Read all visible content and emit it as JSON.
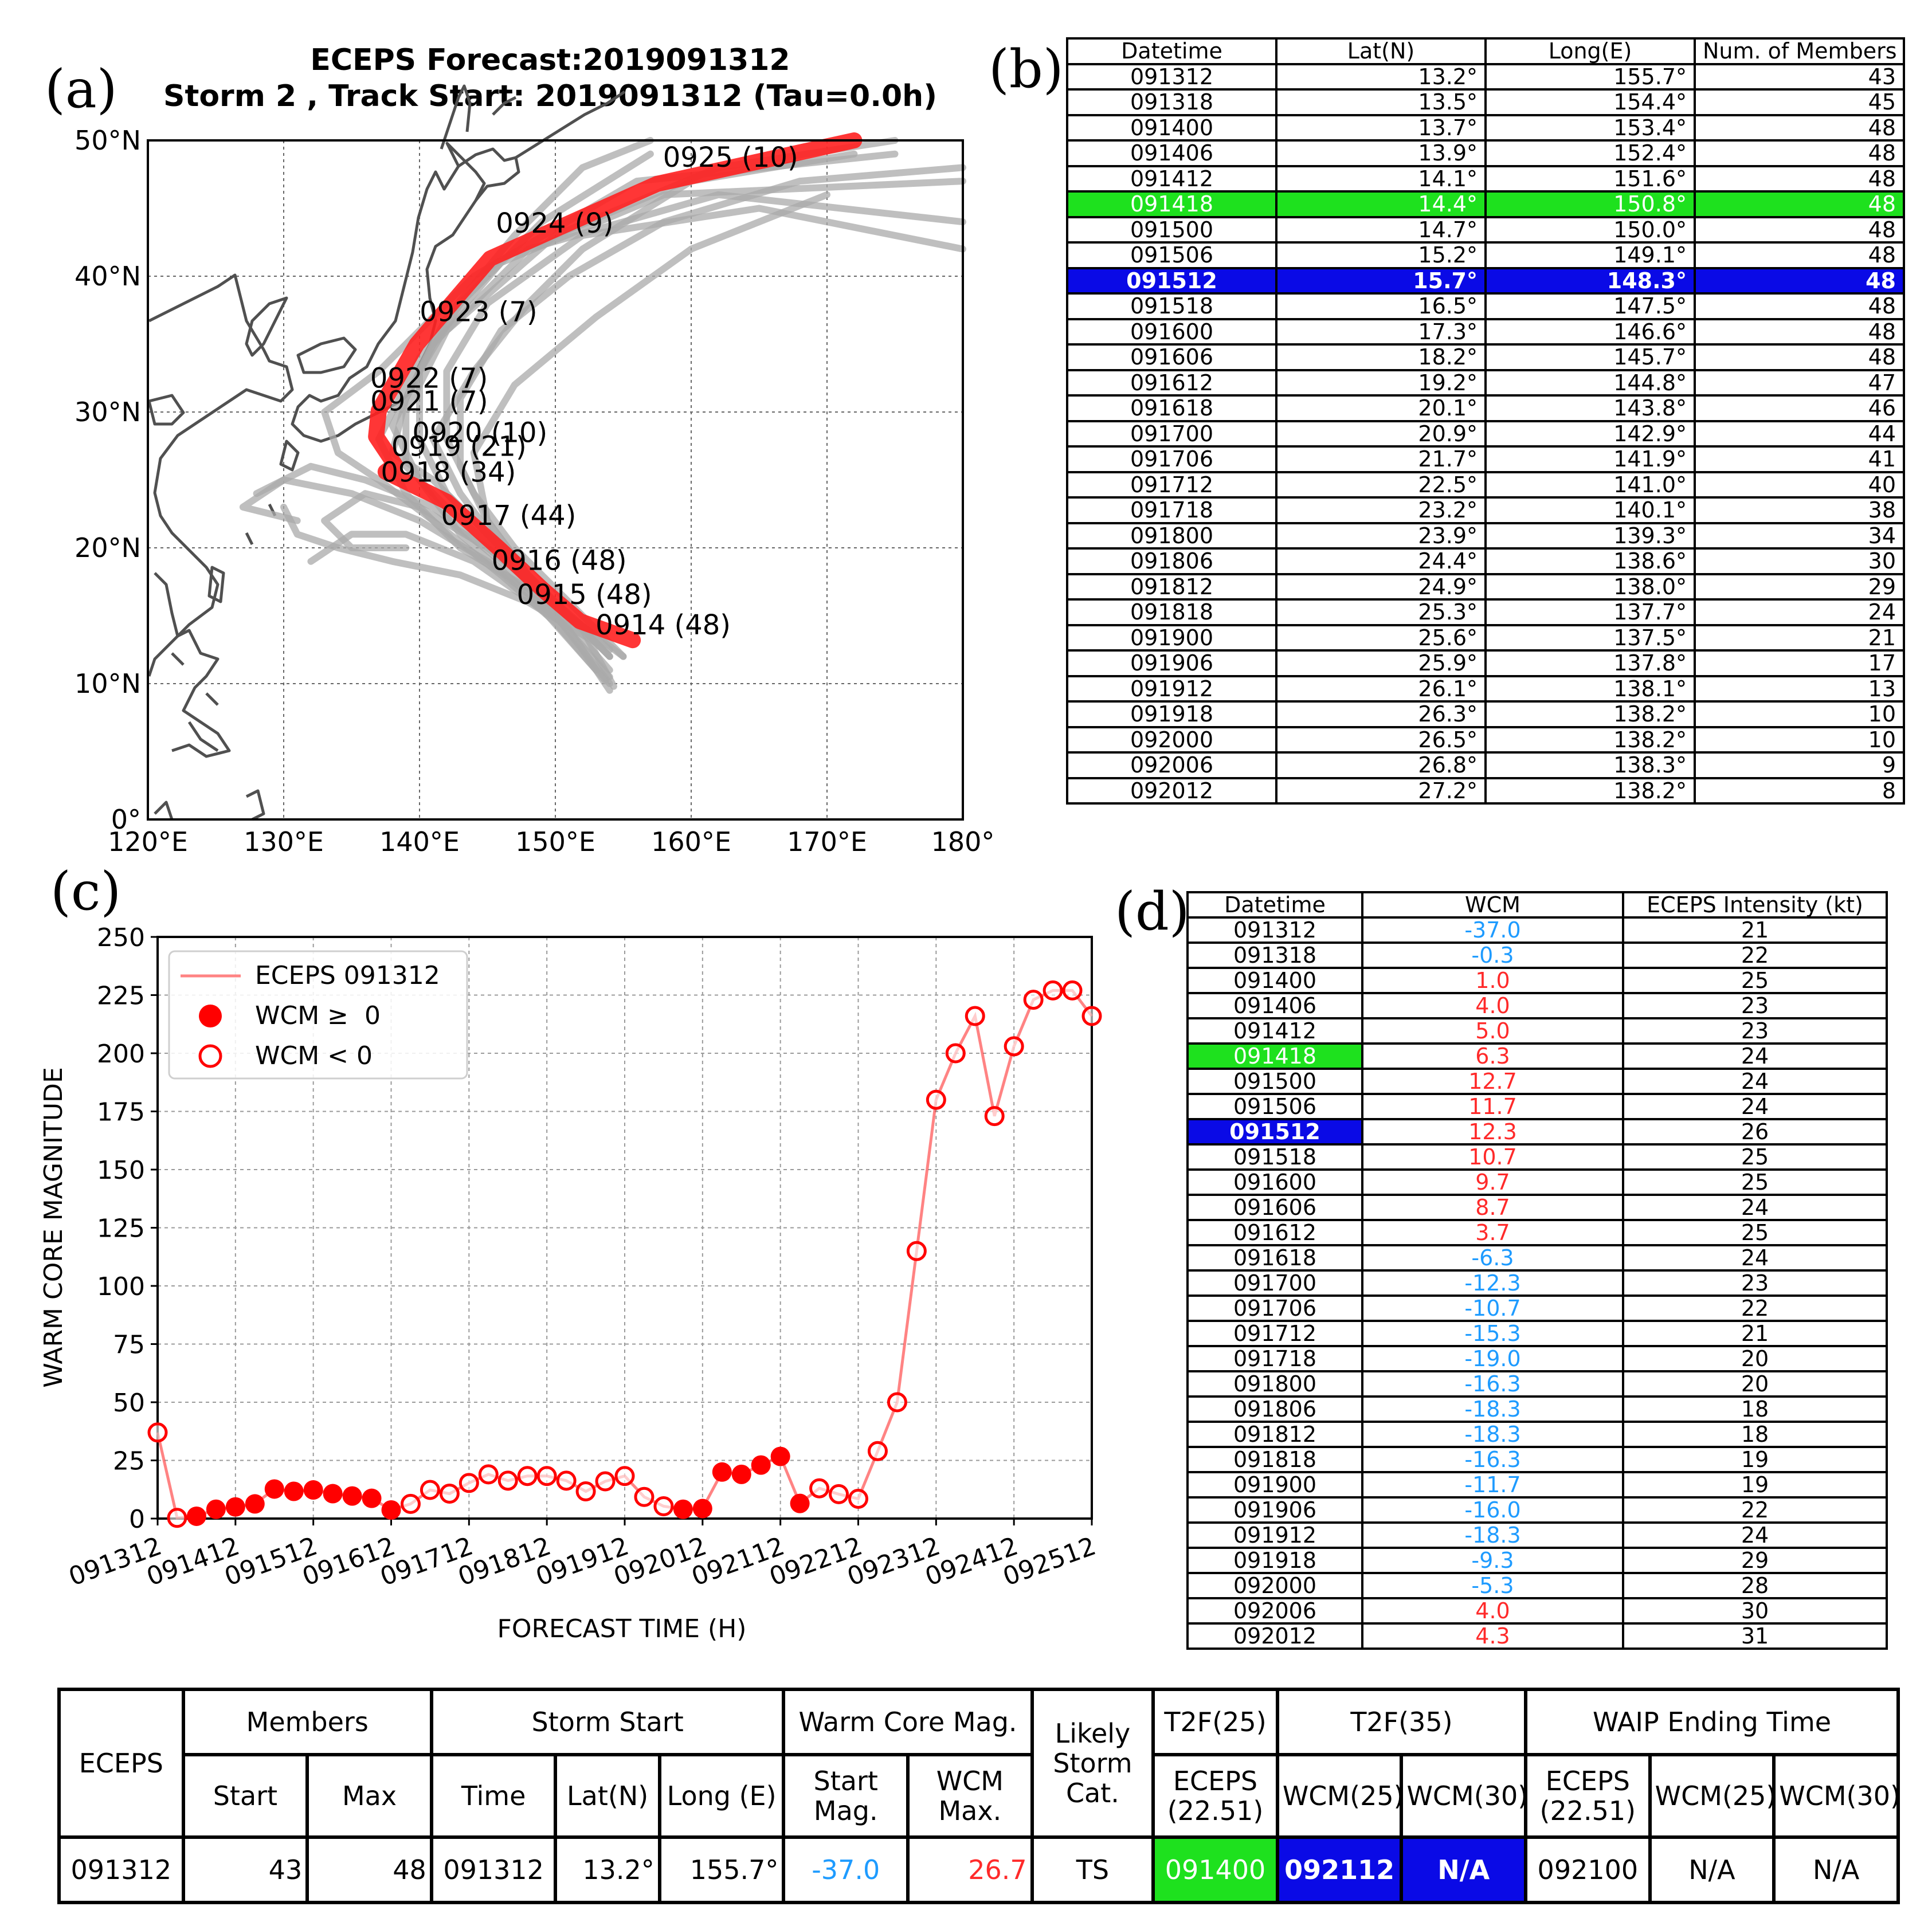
{
  "panels": {
    "a": "(a)",
    "b": "(b)",
    "c": "(c)",
    "d": "(d)"
  },
  "map": {
    "title_line1": "ECEPS Forecast:2019091312",
    "title_line2": "Storm 2 , Track Start: 2019091312 (Tau=0.0h)",
    "lon_ticks": [
      "120°E",
      "130°E",
      "140°E",
      "150°E",
      "160°E",
      "170°E",
      "180°"
    ],
    "lat_ticks": [
      "50°N",
      "40°N",
      "30°N",
      "20°N",
      "10°N",
      "0°"
    ],
    "mean_track": [
      {
        "lon": 155.7,
        "lat": 13.2,
        "label": "0914 (48)"
      },
      {
        "lon": 151.8,
        "lat": 14.6,
        "label": "0915 (48)"
      },
      {
        "lon": 149.1,
        "lat": 16.9,
        "label": "0916 (48)"
      },
      {
        "lon": 145.8,
        "lat": 20.0,
        "label": "0917 (44)"
      },
      {
        "lon": 142.0,
        "lat": 23.4,
        "label": "0918 (34)"
      },
      {
        "lon": 137.5,
        "lat": 25.6,
        "label": "0919 (21)"
      },
      {
        "lon": 138.2,
        "lat": 26.1,
        "label": "0920 (10)"
      },
      {
        "lon": 136.8,
        "lat": 28.2,
        "label": "0921 (7)"
      },
      {
        "lon": 137.0,
        "lat": 30.1,
        "label": "0922 (7)"
      },
      {
        "lon": 139.8,
        "lat": 35.0,
        "label": "0923 (7)"
      },
      {
        "lon": 145.2,
        "lat": 41.3,
        "label": "0924 (9)"
      },
      {
        "lon": 157.5,
        "lat": 46.8,
        "label": "0925 (10)"
      },
      {
        "lon": 172.0,
        "lat": 50.0,
        "label": ""
      }
    ]
  },
  "table_b": {
    "headers": [
      "Datetime",
      "Lat(N)",
      "Long(E)",
      "Num. of Members"
    ],
    "rows": [
      [
        "091312",
        "13.2°",
        "155.7°",
        "43"
      ],
      [
        "091318",
        "13.5°",
        "154.4°",
        "45"
      ],
      [
        "091400",
        "13.7°",
        "153.4°",
        "48"
      ],
      [
        "091406",
        "13.9°",
        "152.4°",
        "48"
      ],
      [
        "091412",
        "14.1°",
        "151.6°",
        "48"
      ],
      [
        "091418",
        "14.4°",
        "150.8°",
        "48"
      ],
      [
        "091500",
        "14.7°",
        "150.0°",
        "48"
      ],
      [
        "091506",
        "15.2°",
        "149.1°",
        "48"
      ],
      [
        "091512",
        "15.7°",
        "148.3°",
        "48"
      ],
      [
        "091518",
        "16.5°",
        "147.5°",
        "48"
      ],
      [
        "091600",
        "17.3°",
        "146.6°",
        "48"
      ],
      [
        "091606",
        "18.2°",
        "145.7°",
        "48"
      ],
      [
        "091612",
        "19.2°",
        "144.8°",
        "47"
      ],
      [
        "091618",
        "20.1°",
        "143.8°",
        "46"
      ],
      [
        "091700",
        "20.9°",
        "142.9°",
        "44"
      ],
      [
        "091706",
        "21.7°",
        "141.9°",
        "41"
      ],
      [
        "091712",
        "22.5°",
        "141.0°",
        "40"
      ],
      [
        "091718",
        "23.2°",
        "140.1°",
        "38"
      ],
      [
        "091800",
        "23.9°",
        "139.3°",
        "34"
      ],
      [
        "091806",
        "24.4°",
        "138.6°",
        "30"
      ],
      [
        "091812",
        "24.9°",
        "138.0°",
        "29"
      ],
      [
        "091818",
        "25.3°",
        "137.7°",
        "24"
      ],
      [
        "091900",
        "25.6°",
        "137.5°",
        "21"
      ],
      [
        "091906",
        "25.9°",
        "137.8°",
        "17"
      ],
      [
        "091912",
        "26.1°",
        "138.1°",
        "13"
      ],
      [
        "091918",
        "26.3°",
        "138.2°",
        "10"
      ],
      [
        "092000",
        "26.5°",
        "138.2°",
        "10"
      ],
      [
        "092006",
        "26.8°",
        "138.3°",
        "9"
      ],
      [
        "092012",
        "27.2°",
        "138.2°",
        "8"
      ]
    ],
    "green_row": "091418",
    "blue_row": "091512"
  },
  "chart_data": {
    "type": "line",
    "xlabel": "FORECAST TIME (H)",
    "ylabel": "WARM CORE MAGNITUDE",
    "ylim": [
      0,
      250
    ],
    "yticks": [
      0,
      25,
      50,
      75,
      100,
      125,
      150,
      175,
      200,
      225,
      250
    ],
    "xlim": [
      0,
      288
    ],
    "xtick_labels": [
      "091312",
      "091412",
      "091512",
      "091612",
      "091712",
      "091812",
      "091912",
      "092012",
      "092112",
      "092212",
      "092312",
      "092412",
      "092512"
    ],
    "grid": true,
    "legend_position": "top-left",
    "legend": [
      "ECEPS 091312",
      "WCM ≥  0",
      "WCM < 0"
    ],
    "series": [
      {
        "name": "ECEPS 091312",
        "color": "#ff0000",
        "x": [
          0,
          6,
          12,
          18,
          24,
          30,
          36,
          42,
          48,
          54,
          60,
          66,
          72,
          78,
          84,
          90,
          96,
          102,
          108,
          114,
          120,
          126,
          132,
          138,
          144,
          150,
          156,
          162,
          168,
          174,
          180,
          186,
          192,
          198,
          204,
          210,
          216,
          222,
          228,
          234,
          240,
          246,
          252,
          258,
          264,
          270,
          276,
          282,
          288
        ],
        "y": [
          37,
          0.3,
          1,
          4,
          5,
          6.3,
          12.7,
          11.7,
          12.3,
          10.7,
          9.7,
          8.7,
          3.7,
          6.3,
          12.3,
          10.7,
          15.3,
          19,
          16.3,
          18.3,
          18.3,
          16.3,
          11.7,
          16,
          18.3,
          9.3,
          5.3,
          4,
          4.3,
          20,
          19,
          23,
          26.7,
          6.5,
          13,
          10.5,
          8.5,
          29,
          50,
          115,
          180,
          200,
          216,
          173,
          203,
          223,
          227,
          227,
          216
        ],
        "warm": [
          false,
          false,
          true,
          true,
          true,
          true,
          true,
          true,
          true,
          true,
          true,
          true,
          true,
          false,
          false,
          false,
          false,
          false,
          false,
          false,
          false,
          false,
          false,
          false,
          false,
          false,
          false,
          true,
          true,
          true,
          true,
          true,
          true,
          true,
          false,
          false,
          false,
          false,
          false,
          false,
          false,
          false,
          false,
          false,
          false,
          false,
          false,
          false,
          false
        ]
      }
    ]
  },
  "table_d": {
    "headers": [
      "Datetime",
      "WCM",
      "ECEPS Intensity (kt)"
    ],
    "rows": [
      [
        "091312",
        "-37.0",
        "21"
      ],
      [
        "091318",
        "-0.3",
        "22"
      ],
      [
        "091400",
        "1.0",
        "25"
      ],
      [
        "091406",
        "4.0",
        "23"
      ],
      [
        "091412",
        "5.0",
        "23"
      ],
      [
        "091418",
        "6.3",
        "24"
      ],
      [
        "091500",
        "12.7",
        "24"
      ],
      [
        "091506",
        "11.7",
        "24"
      ],
      [
        "091512",
        "12.3",
        "26"
      ],
      [
        "091518",
        "10.7",
        "25"
      ],
      [
        "091600",
        "9.7",
        "25"
      ],
      [
        "091606",
        "8.7",
        "24"
      ],
      [
        "091612",
        "3.7",
        "25"
      ],
      [
        "091618",
        "-6.3",
        "24"
      ],
      [
        "091700",
        "-12.3",
        "23"
      ],
      [
        "091706",
        "-10.7",
        "22"
      ],
      [
        "091712",
        "-15.3",
        "21"
      ],
      [
        "091718",
        "-19.0",
        "20"
      ],
      [
        "091800",
        "-16.3",
        "20"
      ],
      [
        "091806",
        "-18.3",
        "18"
      ],
      [
        "091812",
        "-18.3",
        "18"
      ],
      [
        "091818",
        "-16.3",
        "19"
      ],
      [
        "091900",
        "-11.7",
        "19"
      ],
      [
        "091906",
        "-16.0",
        "22"
      ],
      [
        "091912",
        "-18.3",
        "24"
      ],
      [
        "091918",
        "-9.3",
        "29"
      ],
      [
        "092000",
        "-5.3",
        "28"
      ],
      [
        "092006",
        "4.0",
        "30"
      ],
      [
        "092012",
        "4.3",
        "31"
      ]
    ],
    "green_row": "091418",
    "blue_row": "091512",
    "colors": {
      "positive": "#ff2a2a",
      "negative": "#1e9bff"
    }
  },
  "summary": {
    "eceps": "ECEPS",
    "members": "Members",
    "start": "Start",
    "max": "Max",
    "storm_start": "Storm Start",
    "time": "Time",
    "lat": "Lat(N)",
    "long": "Long (E)",
    "warm_core_mag": "Warm Core Mag.",
    "start_mag": "Start Mag.",
    "wcm_max": "WCM Max.",
    "likely_storm_cat": "Likely Storm Cat.",
    "t2f25": "T2F(25)",
    "t2f35": "T2F(35)",
    "waip_ending": "WAIP Ending Time",
    "eceps_2251": "ECEPS (22.51)",
    "wcm25": "WCM(25)",
    "wcm30": "WCM(30)",
    "values": {
      "eceps": "091312",
      "members_start": "43",
      "members_max": "48",
      "time": "091312",
      "lat": "13.2°",
      "long": "155.7°",
      "start_mag": "-37.0",
      "wcm_max": "26.7",
      "cat": "TS",
      "t2f25_eceps": "091400",
      "t2f35_wcm25": "092112",
      "t2f35_wcm30": "N/A",
      "waip_eceps": "092100",
      "waip_wcm25": "N/A",
      "waip_wcm30": "N/A"
    }
  }
}
